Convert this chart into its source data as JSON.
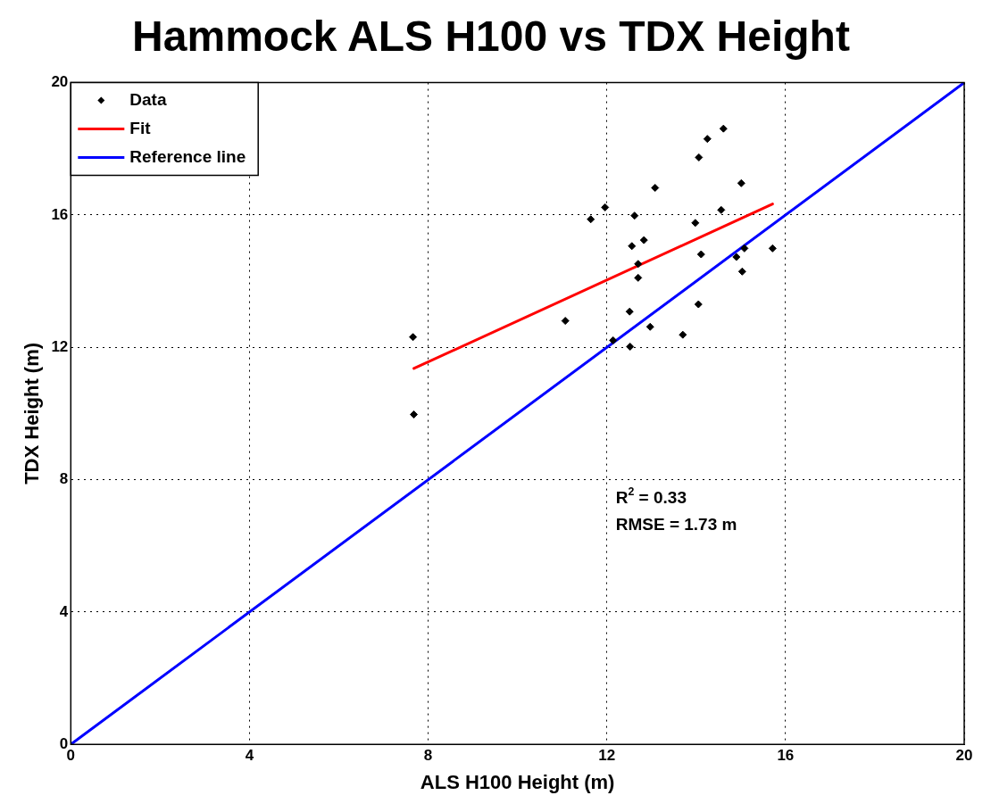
{
  "chart_data": {
    "type": "scatter",
    "title": "Hammock ALS H100 vs TDX Height",
    "xlabel": "ALS H100 Height (m)",
    "ylabel": "TDX Height (m)",
    "xlim": [
      0,
      20
    ],
    "ylim": [
      0,
      20
    ],
    "xticks": [
      0,
      4,
      8,
      12,
      16,
      20
    ],
    "yticks": [
      0,
      4,
      8,
      12,
      16,
      20
    ],
    "grid": true,
    "legend": "top left",
    "series": [
      {
        "name": "Data",
        "type": "scatter",
        "color": "#000000",
        "marker": "diamond",
        "x": [
          7.66,
          7.68,
          11.07,
          11.64,
          11.96,
          12.62,
          13.08,
          14.06,
          14.25,
          14.61,
          15.01,
          14.56,
          13.98,
          12.83,
          12.56,
          14.11,
          15.08,
          15.71,
          14.9,
          15.03,
          12.7,
          12.7,
          14.05,
          12.51,
          12.97,
          13.7,
          12.14,
          12.52
        ],
        "values": [
          12.31,
          9.97,
          12.8,
          15.87,
          16.23,
          15.98,
          16.82,
          17.74,
          18.3,
          18.61,
          16.96,
          16.15,
          15.76,
          15.24,
          15.06,
          14.81,
          14.99,
          14.99,
          14.73,
          14.29,
          14.52,
          14.1,
          13.3,
          13.08,
          12.62,
          12.38,
          12.21,
          12.02
        ]
      },
      {
        "name": "Fit",
        "type": "line",
        "color": "#ff0000",
        "marker": "none",
        "line_style": "solid",
        "x": [
          7.68,
          15.71
        ],
        "values": [
          11.36,
          16.33
        ]
      },
      {
        "name": "Reference line",
        "type": "line",
        "color": "#0000ff",
        "marker": "none",
        "line_style": "solid",
        "x": [
          0,
          20
        ],
        "values": [
          0,
          20
        ]
      }
    ],
    "annotations": [
      "R$^{2}$ = 0.33",
      "RMSE = 1.73 m"
    ]
  }
}
